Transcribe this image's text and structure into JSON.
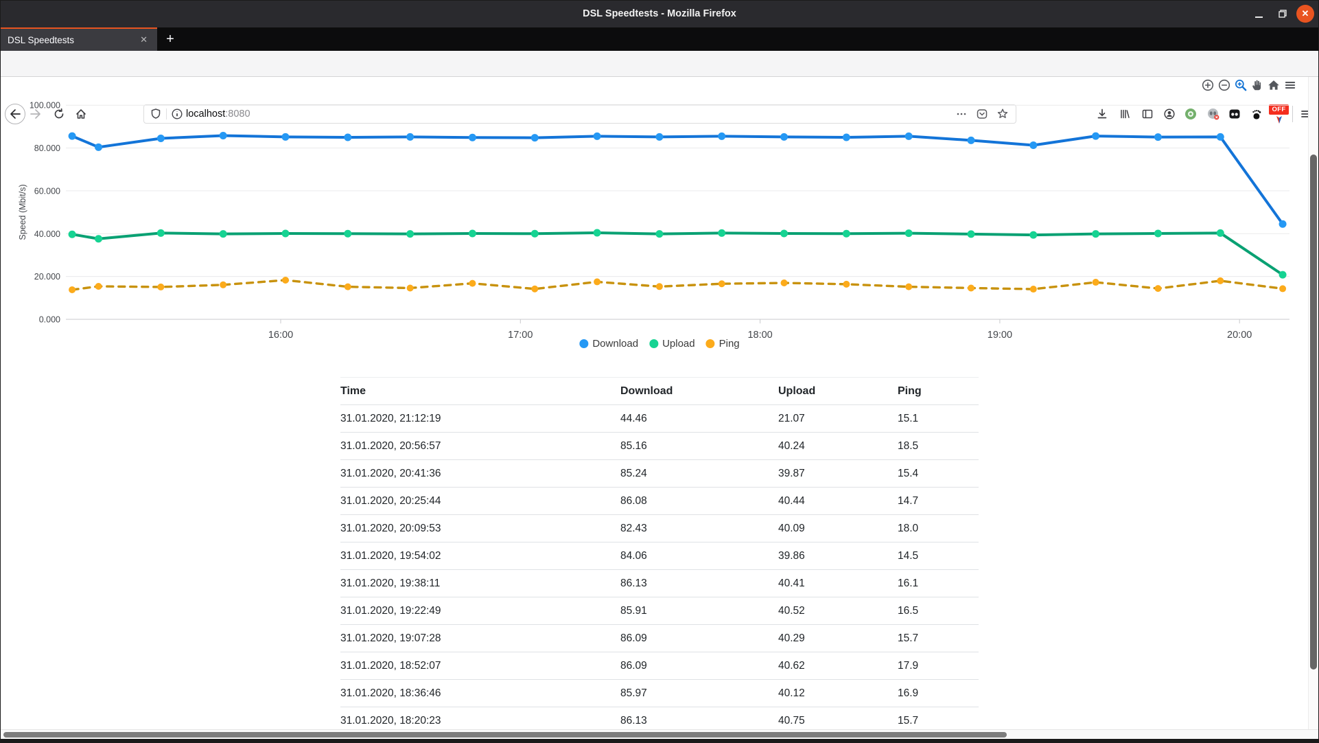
{
  "titlebar": {
    "title": "DSL Speedtests - Mozilla Firefox"
  },
  "tabbar": {
    "active_tab_label": "DSL Speedtests",
    "close_glyph": "✕",
    "new_tab_glyph": "+"
  },
  "navbar": {
    "url_host": "localhost",
    "url_port": ":8080",
    "off_badge": "OFF"
  },
  "chart_data": {
    "type": "line",
    "title": "",
    "xlabel": "",
    "ylabel": "Speed (Mbit/s)",
    "ylim": [
      0,
      100
    ],
    "grid": true,
    "legend_position": "bottom-center",
    "yticks": [
      {
        "v": 0,
        "label": "0.000"
      },
      {
        "v": 20,
        "label": "20.000"
      },
      {
        "v": 40,
        "label": "40.000"
      },
      {
        "v": 60,
        "label": "60.000"
      },
      {
        "v": 80,
        "label": "80.000"
      },
      {
        "v": 100,
        "label": "100.000"
      }
    ],
    "xticks": [
      {
        "h": 16,
        "label": "16:00"
      },
      {
        "h": 17,
        "label": "17:00"
      },
      {
        "h": 18,
        "label": "18:00"
      },
      {
        "h": 19,
        "label": "19:00"
      },
      {
        "h": 20,
        "label": "20:00"
      }
    ],
    "x_hours": [
      15.13,
      15.24,
      15.5,
      15.76,
      16.02,
      16.28,
      16.54,
      16.8,
      17.06,
      17.32,
      17.58,
      17.84,
      18.1,
      18.36,
      18.62,
      18.88,
      19.14,
      19.4,
      19.66,
      19.92,
      20.18
    ],
    "series": [
      {
        "name": "Download",
        "marker_color": "#2598f4",
        "line_color": "#1374d8",
        "dash": false,
        "values": [
          85.6,
          80.4,
          84.5,
          85.8,
          85.2,
          85.0,
          85.2,
          84.9,
          84.8,
          85.5,
          85.2,
          85.5,
          85.2,
          85.0,
          85.5,
          83.6,
          81.3,
          85.6,
          85.1,
          85.2,
          44.5
        ]
      },
      {
        "name": "Upload",
        "marker_color": "#16d392",
        "line_color": "#0aa173",
        "dash": false,
        "values": [
          39.7,
          37.6,
          40.3,
          39.9,
          40.1,
          40.0,
          39.9,
          40.1,
          40.0,
          40.4,
          39.9,
          40.3,
          40.1,
          40.0,
          40.2,
          39.8,
          39.4,
          39.9,
          40.1,
          40.3,
          20.8
        ]
      },
      {
        "name": "Ping",
        "marker_color": "#fcab1b",
        "line_color": "#c8920e",
        "dash": true,
        "values": [
          13.8,
          15.4,
          15.1,
          16.1,
          18.3,
          15.2,
          14.6,
          16.8,
          14.2,
          17.5,
          15.3,
          16.6,
          17.0,
          16.4,
          15.2,
          14.6,
          14.1,
          17.3,
          14.4,
          18.0,
          14.3
        ]
      }
    ]
  },
  "table": {
    "headers": [
      "Time",
      "Download",
      "Upload",
      "Ping"
    ],
    "rows": [
      [
        "31.01.2020, 21:12:19",
        "44.46",
        "21.07",
        "15.1"
      ],
      [
        "31.01.2020, 20:56:57",
        "85.16",
        "40.24",
        "18.5"
      ],
      [
        "31.01.2020, 20:41:36",
        "85.24",
        "39.87",
        "15.4"
      ],
      [
        "31.01.2020, 20:25:44",
        "86.08",
        "40.44",
        "14.7"
      ],
      [
        "31.01.2020, 20:09:53",
        "82.43",
        "40.09",
        "18.0"
      ],
      [
        "31.01.2020, 19:54:02",
        "84.06",
        "39.86",
        "14.5"
      ],
      [
        "31.01.2020, 19:38:11",
        "86.13",
        "40.41",
        "16.1"
      ],
      [
        "31.01.2020, 19:22:49",
        "85.91",
        "40.52",
        "16.5"
      ],
      [
        "31.01.2020, 19:07:28",
        "86.09",
        "40.29",
        "15.7"
      ],
      [
        "31.01.2020, 18:52:07",
        "86.09",
        "40.62",
        "17.9"
      ],
      [
        "31.01.2020, 18:36:46",
        "85.97",
        "40.12",
        "16.9"
      ],
      [
        "31.01.2020, 18:20:23",
        "86.13",
        "40.75",
        "15.7"
      ]
    ]
  }
}
